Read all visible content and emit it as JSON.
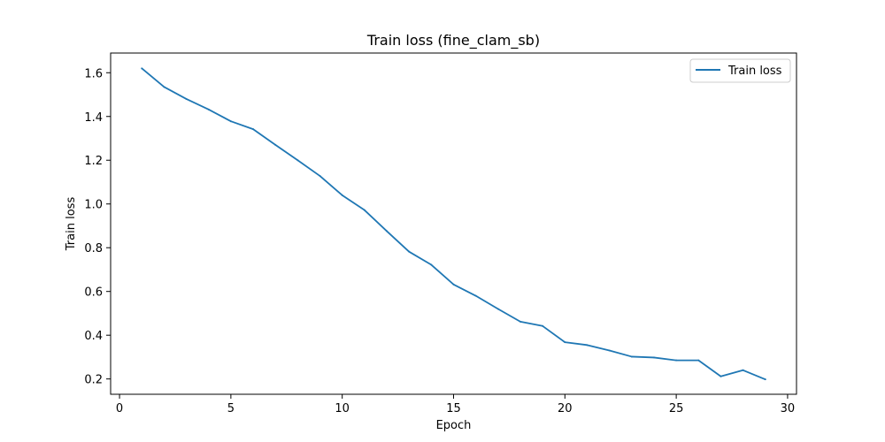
{
  "chart_data": {
    "type": "line",
    "title": "Train loss (fine_clam_sb)",
    "xlabel": "Epoch",
    "ylabel": "Train loss",
    "xlim": [
      -0.4,
      30.4
    ],
    "ylim": [
      0.13,
      1.69
    ],
    "xticks": [
      0,
      5,
      10,
      15,
      20,
      25,
      30
    ],
    "xtick_labels": [
      "0",
      "5",
      "10",
      "15",
      "20",
      "25",
      "30"
    ],
    "yticks": [
      0.2,
      0.4,
      0.6,
      0.8,
      1.0,
      1.2,
      1.4,
      1.6
    ],
    "ytick_labels": [
      "0.2",
      "0.4",
      "0.6",
      "0.8",
      "1.0",
      "1.2",
      "1.4",
      "1.6"
    ],
    "grid": false,
    "legend_position": "top-right",
    "series": [
      {
        "name": "Train loss",
        "color": "#1f77b4",
        "x": [
          1,
          2,
          3,
          4,
          5,
          6,
          7,
          8,
          9,
          10,
          11,
          12,
          13,
          14,
          15,
          16,
          17,
          18,
          19,
          20,
          21,
          22,
          23,
          24,
          25,
          26,
          27,
          28,
          29
        ],
        "y": [
          1.62,
          1.535,
          1.48,
          1.432,
          1.378,
          1.342,
          1.27,
          1.2,
          1.128,
          1.04,
          0.972,
          0.876,
          0.782,
          0.722,
          0.632,
          0.58,
          0.52,
          0.462,
          0.442,
          0.368,
          0.355,
          0.33,
          0.302,
          0.298,
          0.285,
          0.285,
          0.212,
          0.24,
          0.198
        ]
      }
    ]
  }
}
